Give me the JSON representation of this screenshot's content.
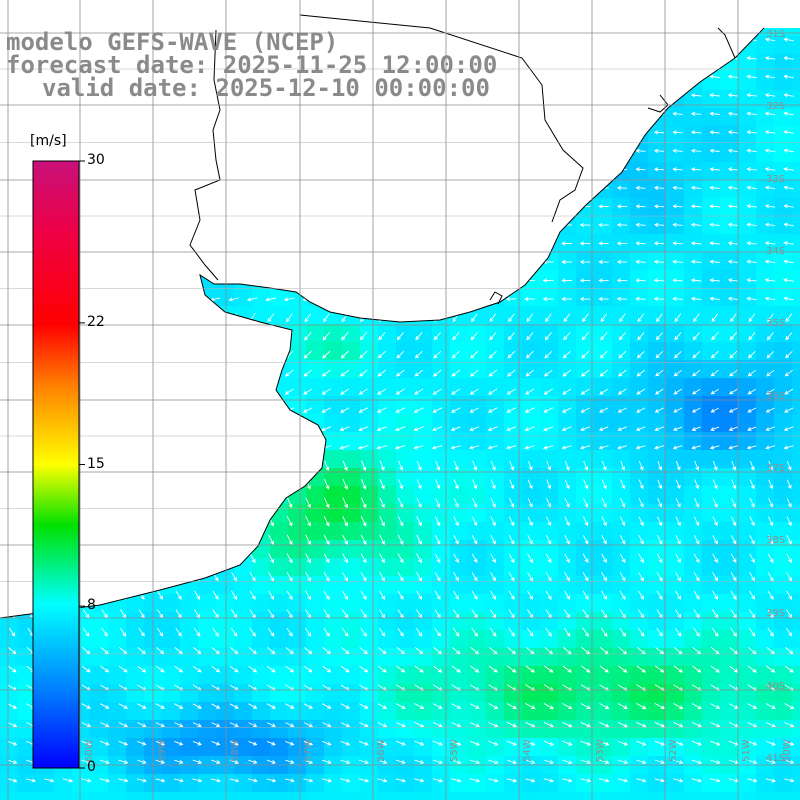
{
  "title": {
    "line1": "modelo GEFS-WAVE (NCEP)",
    "line2": "forecast date: 2025-11-25 12:00:00",
    "line3": "valid date: 2025-12-10 00:00:00"
  },
  "colorbar": {
    "unit": "[m/s]",
    "ticks": [
      {
        "label": "30",
        "value": 30
      },
      {
        "label": "22",
        "value": 22
      },
      {
        "label": "15",
        "value": 15
      },
      {
        "label": "8",
        "value": 8
      },
      {
        "label": "0",
        "value": 0
      }
    ],
    "min": 0,
    "max": 30
  },
  "lat_labels": [
    "31S",
    "32S",
    "33S",
    "34S",
    "35S",
    "36S",
    "37S",
    "38S",
    "39S",
    "40S",
    "41S"
  ],
  "lon_labels": [
    "60W",
    "59W",
    "58W",
    "57W",
    "56W",
    "55W",
    "54W",
    "53W",
    "52W",
    "51W",
    "50W"
  ],
  "colors": {
    "land": "#ffffff",
    "coast": "#000000",
    "grid": "#8c8c8c",
    "arrow": "#ffffff"
  }
}
